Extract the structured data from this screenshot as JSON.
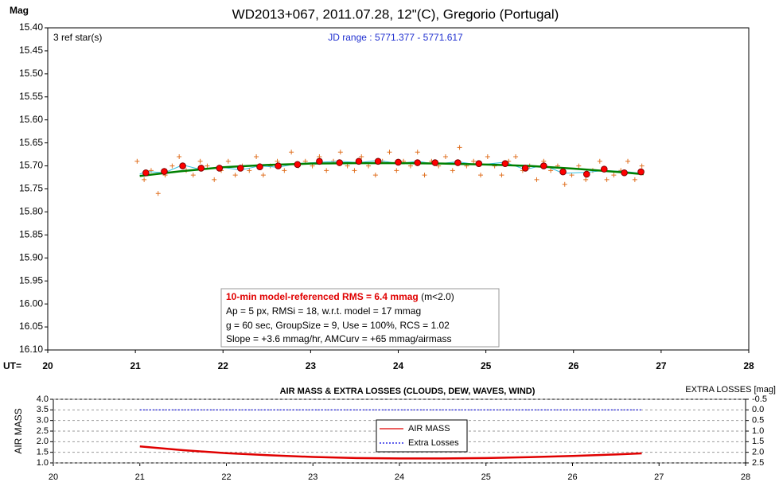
{
  "chart_data": [
    {
      "type": "scatter",
      "title": "WD2013+067, 2011.07.28, 12\"(C), Gregorio (Portugal)",
      "ylabel": "Mag",
      "xlabel": "UT=",
      "ref_stars": "3 ref star(s)",
      "jd_range": "JD range : 5771.377 - 5771.617",
      "rms_line": "10-min model-referenced RMS = 6.4 mmag",
      "rms_note": "(m<2.0)",
      "info_lines": [
        "Ap = 5 px, RMSi = 18, w.r.t. model = 17 mmag",
        "g = 60 sec, GroupSize = 9, Use = 100%, RCS = 1.02",
        "Slope = +3.6 mmag/hr, AMCurv = +65 mmag/airmass"
      ],
      "xlim": [
        20,
        28
      ],
      "xticks": [
        20,
        21,
        22,
        23,
        24,
        25,
        26,
        27,
        28
      ],
      "ylim": [
        15.4,
        16.1
      ],
      "y_inverted": true,
      "yticks": [
        {
          "value": 15.4,
          "label": "15.40"
        },
        {
          "value": 15.45,
          "label": "15.45"
        },
        {
          "value": 15.5,
          "label": "15.50"
        },
        {
          "value": 15.55,
          "label": "15.55"
        },
        {
          "value": 15.6,
          "label": "15.60"
        },
        {
          "value": 15.65,
          "label": "15.65"
        },
        {
          "value": 15.7,
          "label": "15.70"
        },
        {
          "value": 15.75,
          "label": "15.75"
        },
        {
          "value": 15.8,
          "label": "15.80"
        },
        {
          "value": 15.85,
          "label": "15.85"
        },
        {
          "value": 15.9,
          "label": "15.90"
        },
        {
          "value": 15.95,
          "label": "15.95"
        },
        {
          "value": 16.0,
          "label": "16.00"
        },
        {
          "value": 16.05,
          "label": "16.05"
        },
        {
          "value": 16.1,
          "label": "16.10"
        }
      ],
      "grid": false,
      "series": [
        {
          "style": "cross",
          "color": "#e07020",
          "x": [
            21.02,
            21.1,
            21.18,
            21.26,
            21.34,
            21.42,
            21.5,
            21.58,
            21.66,
            21.74,
            21.82,
            21.9,
            21.98,
            22.06,
            22.14,
            22.22,
            22.3,
            22.38,
            22.46,
            22.54,
            22.62,
            22.7,
            22.78,
            22.86,
            22.94,
            23.02,
            23.1,
            23.18,
            23.26,
            23.34,
            23.42,
            23.5,
            23.58,
            23.66,
            23.74,
            23.82,
            23.9,
            23.98,
            24.06,
            24.14,
            24.22,
            24.3,
            24.38,
            24.46,
            24.54,
            24.62,
            24.7,
            24.78,
            24.86,
            24.94,
            25.02,
            25.1,
            25.18,
            25.26,
            25.34,
            25.42,
            25.5,
            25.58,
            25.66,
            25.74,
            25.82,
            25.9,
            25.98,
            26.06,
            26.14,
            26.22,
            26.3,
            26.38,
            26.46,
            26.54,
            26.62,
            26.7,
            26.78
          ],
          "values": [
            15.69,
            15.73,
            15.71,
            15.76,
            15.72,
            15.7,
            15.68,
            15.71,
            15.72,
            15.69,
            15.7,
            15.73,
            15.71,
            15.69,
            15.72,
            15.7,
            15.71,
            15.68,
            15.72,
            15.7,
            15.69,
            15.71,
            15.67,
            15.7,
            15.69,
            15.7,
            15.68,
            15.71,
            15.69,
            15.67,
            15.7,
            15.71,
            15.68,
            15.7,
            15.72,
            15.69,
            15.67,
            15.71,
            15.69,
            15.7,
            15.67,
            15.72,
            15.69,
            15.7,
            15.68,
            15.71,
            15.66,
            15.7,
            15.69,
            15.72,
            15.68,
            15.7,
            15.72,
            15.69,
            15.68,
            15.71,
            15.7,
            15.73,
            15.69,
            15.71,
            15.7,
            15.74,
            15.72,
            15.7,
            15.73,
            15.71,
            15.69,
            15.73,
            15.72,
            15.71,
            15.69,
            15.73,
            15.7
          ]
        },
        {
          "style": "thin",
          "color": "#30c0e0",
          "x": [
            21.05,
            21.12,
            21.33,
            21.54,
            21.75,
            21.96,
            22.2,
            22.42,
            22.63,
            22.85,
            23.1,
            23.33,
            23.55,
            23.77,
            24.0,
            24.22,
            24.42,
            24.68,
            24.92,
            25.22,
            25.45,
            25.66,
            25.88,
            26.15,
            26.35,
            26.58,
            26.77
          ],
          "values": [
            15.718,
            15.712,
            15.715,
            15.698,
            15.708,
            15.702,
            15.709,
            15.7,
            15.703,
            15.695,
            15.692,
            15.69,
            15.693,
            15.688,
            15.695,
            15.69,
            15.696,
            15.691,
            15.698,
            15.692,
            15.708,
            15.698,
            15.716,
            15.714,
            15.71,
            15.712,
            15.716
          ]
        },
        {
          "style": "line",
          "color": "#008000",
          "x": [
            21.05,
            21.5,
            22,
            22.5,
            23,
            23.5,
            24,
            24.5,
            25,
            25.5,
            26,
            26.5,
            26.8
          ],
          "values": [
            15.722,
            15.712,
            15.703,
            15.698,
            15.695,
            15.694,
            15.694,
            15.695,
            15.697,
            15.7,
            15.706,
            15.713,
            15.718
          ]
        },
        {
          "style": "dot",
          "color": "#ff0000",
          "x": [
            21.12,
            21.33,
            21.54,
            21.75,
            21.96,
            22.2,
            22.42,
            22.63,
            22.85,
            23.1,
            23.33,
            23.55,
            23.77,
            24.0,
            24.22,
            24.42,
            24.68,
            24.92,
            25.22,
            25.45,
            25.66,
            25.88,
            26.15,
            26.35,
            26.58,
            26.77
          ],
          "values": [
            15.715,
            15.712,
            15.7,
            15.705,
            15.705,
            15.705,
            15.702,
            15.7,
            15.697,
            15.69,
            15.693,
            15.69,
            15.69,
            15.692,
            15.693,
            15.693,
            15.693,
            15.695,
            15.695,
            15.705,
            15.7,
            15.713,
            15.718,
            15.707,
            15.715,
            15.713
          ]
        }
      ]
    },
    {
      "type": "line",
      "title": "AIR MASS & EXTRA LOSSES (CLOUDS, DEW, WAVES, WIND)",
      "ylabel": "AIR MASS",
      "y2label": "EXTRA LOSSES [mag]",
      "xlim": [
        20,
        28
      ],
      "xticks": [
        20,
        21,
        22,
        23,
        24,
        25,
        26,
        27,
        28
      ],
      "ylim": [
        1.0,
        4.0
      ],
      "yticks": [
        {
          "value": 1.0,
          "label": "1.0"
        },
        1.5,
        {
          "value": 2.0,
          "label": "2.0"
        },
        2.5,
        {
          "value": 3.0,
          "label": "3.0"
        },
        3.5,
        {
          "value": 4.0,
          "label": "4.0"
        }
      ],
      "y2lim": [
        -0.5,
        2.5
      ],
      "y2_inverted": true,
      "y2ticks": [
        -0.5,
        {
          "value": 0,
          "label": "0.0"
        },
        0.5,
        {
          "value": 1,
          "label": "1.0"
        },
        1.5,
        {
          "value": 2,
          "label": "2.0"
        },
        2.5
      ],
      "grid": true,
      "legend": "center",
      "series": [
        {
          "name": "AIR MASS",
          "color": "#e00000",
          "style": "line",
          "x": [
            21.0,
            21.5,
            22,
            22.5,
            23,
            23.5,
            24,
            24.5,
            25,
            25.5,
            26,
            26.5,
            26.8
          ],
          "values": [
            1.78,
            1.6,
            1.46,
            1.36,
            1.28,
            1.23,
            1.21,
            1.21,
            1.23,
            1.27,
            1.33,
            1.4,
            1.45
          ]
        },
        {
          "name": "Extra Losses",
          "color": "#0000e0",
          "style": "dashed",
          "axis": "y2",
          "x": [
            21.0,
            26.8
          ],
          "values": [
            0,
            0
          ]
        }
      ]
    }
  ]
}
